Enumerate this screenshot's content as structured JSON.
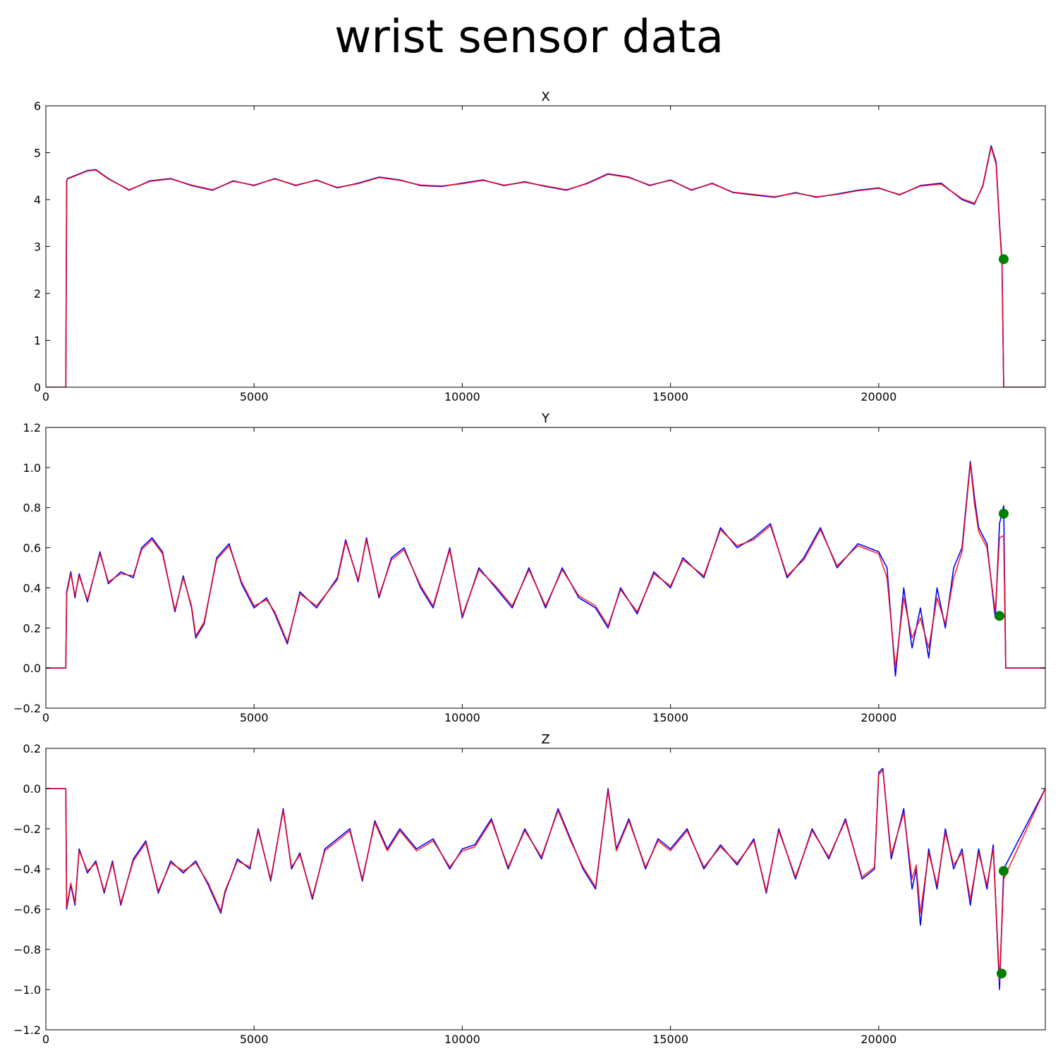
{
  "figure": {
    "title": "wrist sensor data"
  },
  "colors": {
    "series_blue": "#0000ff",
    "series_red": "#ff0000",
    "marker": "#008000",
    "axes": "#000000"
  },
  "chart_data": [
    {
      "type": "line",
      "title": "X",
      "xlim": [
        0,
        24000
      ],
      "ylim": [
        0,
        6
      ],
      "xticks": [
        0,
        5000,
        10000,
        15000,
        20000
      ],
      "yticks": [
        0,
        1,
        2,
        3,
        4,
        5,
        6
      ],
      "ytick_labels": [
        "0",
        "1",
        "2",
        "3",
        "4",
        "5",
        "6"
      ],
      "grid": false,
      "series": [
        {
          "color": "#0000ff",
          "x": [
            0,
            480,
            500,
            520,
            1000,
            1200,
            1500,
            2000,
            2500,
            3000,
            3500,
            4000,
            4500,
            5000,
            5500,
            6000,
            6500,
            7000,
            7500,
            8000,
            8500,
            9000,
            9500,
            10000,
            10500,
            11000,
            11500,
            12000,
            12500,
            13000,
            13500,
            14000,
            14500,
            15000,
            15500,
            16000,
            16500,
            17000,
            17500,
            18000,
            18500,
            19000,
            19500,
            20000,
            20500,
            21000,
            21500,
            22000,
            22300,
            22500,
            22700,
            22820,
            22900,
            22960,
            23000,
            24000
          ],
          "y": [
            0,
            0,
            4.4,
            4.45,
            4.62,
            4.64,
            4.45,
            4.2,
            4.4,
            4.45,
            4.3,
            4.2,
            4.4,
            4.3,
            4.45,
            4.3,
            4.42,
            4.25,
            4.35,
            4.48,
            4.42,
            4.3,
            4.28,
            4.35,
            4.42,
            4.3,
            4.38,
            4.28,
            4.2,
            4.35,
            4.55,
            4.48,
            4.3,
            4.42,
            4.2,
            4.35,
            4.15,
            4.1,
            4.05,
            4.15,
            4.05,
            4.12,
            4.2,
            4.25,
            4.1,
            4.3,
            4.35,
            4.0,
            3.9,
            4.3,
            5.15,
            4.8,
            3.5,
            2.7,
            0,
            0
          ]
        },
        {
          "color": "#ff0000",
          "x": [
            0,
            480,
            500,
            520,
            1000,
            1200,
            1500,
            2000,
            2500,
            3000,
            3500,
            4000,
            4500,
            5000,
            5500,
            6000,
            6500,
            7000,
            7500,
            8000,
            8500,
            9000,
            9500,
            10000,
            10500,
            11000,
            11500,
            12000,
            12500,
            13000,
            13500,
            14000,
            14500,
            15000,
            15500,
            16000,
            16500,
            17000,
            17500,
            18000,
            18500,
            19000,
            19500,
            20000,
            20500,
            21000,
            21500,
            22000,
            22300,
            22500,
            22700,
            22820,
            22900,
            22960,
            23000,
            24000
          ],
          "y": [
            0,
            0,
            4.38,
            4.44,
            4.61,
            4.63,
            4.44,
            4.21,
            4.39,
            4.44,
            4.31,
            4.21,
            4.39,
            4.31,
            4.44,
            4.31,
            4.41,
            4.26,
            4.34,
            4.47,
            4.41,
            4.31,
            4.29,
            4.34,
            4.41,
            4.31,
            4.37,
            4.29,
            4.21,
            4.34,
            4.54,
            4.47,
            4.31,
            4.41,
            4.21,
            4.34,
            4.16,
            4.11,
            4.06,
            4.14,
            4.06,
            4.11,
            4.19,
            4.24,
            4.11,
            4.29,
            4.33,
            4.02,
            3.92,
            4.28,
            5.12,
            4.75,
            3.45,
            2.6,
            0,
            0
          ]
        }
      ],
      "markers": [
        {
          "x": 23000,
          "y": 2.73
        }
      ]
    },
    {
      "type": "line",
      "title": "Y",
      "xlim": [
        0,
        24000
      ],
      "ylim": [
        -0.2,
        1.2
      ],
      "xticks": [
        0,
        5000,
        10000,
        15000,
        20000
      ],
      "yticks": [
        -0.2,
        0.0,
        0.2,
        0.4,
        0.6,
        0.8,
        1.0,
        1.2
      ],
      "ytick_labels": [
        "−0.2",
        "0.0",
        "0.2",
        "0.4",
        "0.6",
        "0.8",
        "1.0",
        "1.2"
      ],
      "grid": false,
      "series": [
        {
          "color": "#0000ff",
          "x": [
            0,
            480,
            500,
            600,
            700,
            800,
            1000,
            1300,
            1500,
            1800,
            2100,
            2300,
            2550,
            2800,
            3100,
            3300,
            3500,
            3600,
            3800,
            4100,
            4400,
            4700,
            5000,
            5300,
            5500,
            5800,
            6100,
            6500,
            7000,
            7200,
            7500,
            7700,
            8000,
            8300,
            8600,
            9000,
            9300,
            9700,
            10000,
            10400,
            10800,
            11200,
            11600,
            12000,
            12400,
            12800,
            13200,
            13500,
            13800,
            14200,
            14600,
            15000,
            15300,
            15800,
            16200,
            16600,
            17000,
            17400,
            17800,
            18200,
            18600,
            19000,
            19500,
            20000,
            20200,
            20400,
            20600,
            20800,
            21000,
            21200,
            21400,
            21600,
            21800,
            22000,
            22200,
            22300,
            22400,
            22600,
            22800,
            22900,
            23000,
            23050,
            24000
          ],
          "y": [
            0,
            0,
            0.38,
            0.48,
            0.35,
            0.47,
            0.33,
            0.58,
            0.42,
            0.48,
            0.45,
            0.6,
            0.65,
            0.58,
            0.28,
            0.46,
            0.3,
            0.15,
            0.22,
            0.55,
            0.62,
            0.42,
            0.3,
            0.35,
            0.27,
            0.12,
            0.38,
            0.3,
            0.45,
            0.64,
            0.43,
            0.65,
            0.35,
            0.55,
            0.6,
            0.4,
            0.3,
            0.6,
            0.25,
            0.5,
            0.4,
            0.3,
            0.5,
            0.3,
            0.5,
            0.35,
            0.3,
            0.2,
            0.4,
            0.27,
            0.48,
            0.4,
            0.55,
            0.45,
            0.7,
            0.6,
            0.65,
            0.72,
            0.45,
            0.55,
            0.7,
            0.5,
            0.62,
            0.58,
            0.5,
            -0.04,
            0.4,
            0.1,
            0.3,
            0.05,
            0.4,
            0.2,
            0.5,
            0.6,
            1.03,
            0.85,
            0.7,
            0.62,
            0.25,
            0.72,
            0.81,
            0.0,
            0.0
          ]
        },
        {
          "color": "#ff0000",
          "x": [
            0,
            480,
            500,
            600,
            700,
            800,
            1000,
            1300,
            1500,
            1800,
            2100,
            2300,
            2550,
            2800,
            3100,
            3300,
            3500,
            3600,
            3800,
            4100,
            4400,
            4700,
            5000,
            5300,
            5500,
            5800,
            6100,
            6500,
            7000,
            7200,
            7500,
            7700,
            8000,
            8300,
            8600,
            9000,
            9300,
            9700,
            10000,
            10400,
            10800,
            11200,
            11600,
            12000,
            12400,
            12800,
            13200,
            13500,
            13800,
            14200,
            14600,
            15000,
            15300,
            15800,
            16200,
            16600,
            17000,
            17400,
            17800,
            18200,
            18600,
            19000,
            19500,
            20000,
            20200,
            20400,
            20600,
            20800,
            21000,
            21200,
            21400,
            21600,
            21800,
            22000,
            22200,
            22300,
            22400,
            22600,
            22800,
            22900,
            23000,
            23050,
            24000
          ],
          "y": [
            0,
            0,
            0.37,
            0.47,
            0.36,
            0.46,
            0.34,
            0.57,
            0.43,
            0.47,
            0.46,
            0.59,
            0.64,
            0.57,
            0.29,
            0.45,
            0.31,
            0.16,
            0.23,
            0.54,
            0.61,
            0.43,
            0.31,
            0.34,
            0.28,
            0.13,
            0.37,
            0.31,
            0.44,
            0.63,
            0.44,
            0.64,
            0.36,
            0.54,
            0.59,
            0.41,
            0.31,
            0.59,
            0.26,
            0.49,
            0.41,
            0.31,
            0.49,
            0.31,
            0.49,
            0.36,
            0.31,
            0.21,
            0.39,
            0.28,
            0.47,
            0.41,
            0.54,
            0.46,
            0.69,
            0.61,
            0.64,
            0.71,
            0.46,
            0.54,
            0.69,
            0.51,
            0.61,
            0.57,
            0.45,
            0.0,
            0.35,
            0.15,
            0.25,
            0.1,
            0.35,
            0.22,
            0.45,
            0.58,
            1.02,
            0.82,
            0.68,
            0.6,
            0.28,
            0.65,
            0.66,
            0.0,
            0.0
          ]
        }
      ],
      "markers": [
        {
          "x": 23000,
          "y": 0.77
        },
        {
          "x": 22900,
          "y": 0.26
        }
      ]
    },
    {
      "type": "line",
      "title": "Z",
      "xlim": [
        0,
        24000
      ],
      "ylim": [
        -1.2,
        0.2
      ],
      "xticks": [
        0,
        5000,
        10000,
        15000,
        20000
      ],
      "yticks": [
        -1.2,
        -1.0,
        -0.8,
        -0.6,
        -0.4,
        -0.2,
        0.0,
        0.2
      ],
      "ytick_labels": [
        "−1.2",
        "−1.0",
        "−0.8",
        "−0.6",
        "−0.4",
        "−0.2",
        "0.0",
        "0.2"
      ],
      "grid": false,
      "series": [
        {
          "color": "#0000ff",
          "x": [
            0,
            480,
            500,
            600,
            700,
            800,
            1000,
            1200,
            1400,
            1600,
            1800,
            2100,
            2400,
            2700,
            3000,
            3300,
            3600,
            3900,
            4200,
            4300,
            4600,
            4900,
            5100,
            5400,
            5700,
            5900,
            6100,
            6400,
            6700,
            7000,
            7300,
            7600,
            7900,
            8200,
            8500,
            8900,
            9300,
            9700,
            10000,
            10300,
            10700,
            11100,
            11500,
            11900,
            12300,
            12600,
            12900,
            13200,
            13500,
            13700,
            14000,
            14400,
            14700,
            15000,
            15400,
            15800,
            16200,
            16600,
            17000,
            17300,
            17600,
            18000,
            18400,
            18800,
            19200,
            19600,
            19900,
            20000,
            20100,
            20300,
            20600,
            20800,
            20900,
            21000,
            21200,
            21400,
            21600,
            21800,
            22000,
            22200,
            22400,
            22600,
            22750,
            22900,
            23000,
            24000
          ],
          "y": [
            0,
            0,
            -0.6,
            -0.48,
            -0.58,
            -0.3,
            -0.42,
            -0.36,
            -0.52,
            -0.36,
            -0.58,
            -0.35,
            -0.26,
            -0.52,
            -0.36,
            -0.42,
            -0.36,
            -0.48,
            -0.62,
            -0.52,
            -0.35,
            -0.4,
            -0.2,
            -0.46,
            -0.1,
            -0.4,
            -0.32,
            -0.55,
            -0.3,
            -0.25,
            -0.2,
            -0.46,
            -0.16,
            -0.3,
            -0.2,
            -0.3,
            -0.25,
            -0.4,
            -0.3,
            -0.28,
            -0.15,
            -0.4,
            -0.2,
            -0.35,
            -0.1,
            -0.25,
            -0.4,
            -0.5,
            0.0,
            -0.3,
            -0.15,
            -0.4,
            -0.25,
            -0.3,
            -0.2,
            -0.4,
            -0.28,
            -0.38,
            -0.25,
            -0.52,
            -0.2,
            -0.45,
            -0.2,
            -0.35,
            -0.15,
            -0.45,
            -0.4,
            0.08,
            0.1,
            -0.35,
            -0.1,
            -0.5,
            -0.4,
            -0.68,
            -0.3,
            -0.5,
            -0.2,
            -0.4,
            -0.3,
            -0.58,
            -0.3,
            -0.5,
            -0.28,
            -1.0,
            -0.4,
            0.0
          ]
        },
        {
          "color": "#ff0000",
          "x": [
            0,
            480,
            500,
            600,
            700,
            800,
            1000,
            1200,
            1400,
            1600,
            1800,
            2100,
            2400,
            2700,
            3000,
            3300,
            3600,
            3900,
            4200,
            4300,
            4600,
            4900,
            5100,
            5400,
            5700,
            5900,
            6100,
            6400,
            6700,
            7000,
            7300,
            7600,
            7900,
            8200,
            8500,
            8900,
            9300,
            9700,
            10000,
            10300,
            10700,
            11100,
            11500,
            11900,
            12300,
            12600,
            12900,
            13200,
            13500,
            13700,
            14000,
            14400,
            14700,
            15000,
            15400,
            15800,
            16200,
            16600,
            17000,
            17300,
            17600,
            18000,
            18400,
            18800,
            19200,
            19600,
            19900,
            20000,
            20100,
            20300,
            20600,
            20800,
            20900,
            21000,
            21200,
            21400,
            21600,
            21800,
            22000,
            22200,
            22400,
            22600,
            22750,
            22900,
            23000,
            24000
          ],
          "y": [
            0,
            0,
            -0.59,
            -0.47,
            -0.57,
            -0.31,
            -0.41,
            -0.37,
            -0.51,
            -0.37,
            -0.57,
            -0.36,
            -0.27,
            -0.51,
            -0.37,
            -0.41,
            -0.37,
            -0.47,
            -0.61,
            -0.51,
            -0.36,
            -0.39,
            -0.21,
            -0.45,
            -0.11,
            -0.39,
            -0.33,
            -0.54,
            -0.31,
            -0.26,
            -0.21,
            -0.45,
            -0.17,
            -0.31,
            -0.21,
            -0.31,
            -0.26,
            -0.39,
            -0.31,
            -0.29,
            -0.16,
            -0.39,
            -0.21,
            -0.34,
            -0.11,
            -0.26,
            -0.39,
            -0.49,
            -0.01,
            -0.31,
            -0.16,
            -0.39,
            -0.26,
            -0.31,
            -0.21,
            -0.39,
            -0.29,
            -0.37,
            -0.26,
            -0.51,
            -0.21,
            -0.44,
            -0.21,
            -0.34,
            -0.16,
            -0.44,
            -0.39,
            0.07,
            0.09,
            -0.33,
            -0.12,
            -0.45,
            -0.38,
            -0.62,
            -0.32,
            -0.48,
            -0.22,
            -0.38,
            -0.32,
            -0.55,
            -0.32,
            -0.48,
            -0.3,
            -0.96,
            -0.45,
            0.0
          ]
        }
      ],
      "markers": [
        {
          "x": 23000,
          "y": -0.41
        },
        {
          "x": 22950,
          "y": -0.92
        }
      ]
    }
  ]
}
